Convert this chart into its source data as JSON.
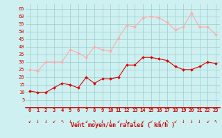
{
  "avg_values": [
    11,
    10,
    10,
    13,
    16,
    15,
    13,
    20,
    16,
    19,
    19,
    20,
    28,
    28,
    33,
    33,
    32,
    31,
    27,
    25,
    25,
    27,
    30,
    29
  ],
  "gust_values": [
    25,
    24,
    30,
    30,
    30,
    38,
    36,
    33,
    40,
    38,
    37,
    46,
    54,
    53,
    59,
    60,
    59,
    56,
    51,
    53,
    62,
    53,
    53,
    48
  ],
  "color_avg": "#dd0000",
  "color_gust": "#ffaaaa",
  "bg_color": "#cef0f0",
  "grid_color": "#99cccc",
  "xlabel": "Vent moyen/en rafales ( km/h )",
  "ylim": [
    0,
    68
  ],
  "yticks": [
    5,
    10,
    15,
    20,
    25,
    30,
    35,
    40,
    45,
    50,
    55,
    60,
    65
  ],
  "xlim": [
    -0.5,
    23.5
  ],
  "xticks": [
    0,
    1,
    2,
    3,
    4,
    5,
    6,
    7,
    8,
    9,
    10,
    11,
    12,
    13,
    14,
    15,
    16,
    17,
    18,
    19,
    20,
    21,
    22,
    23
  ],
  "arrow_chars": [
    "↙",
    "↓",
    "↓",
    "↙",
    "↖",
    "↓",
    "↙",
    "↙",
    "↖",
    "↓",
    "↓",
    "↙",
    "↓",
    "↓",
    "↙",
    "↙",
    "↙",
    "↖",
    "↙",
    "↓",
    "↓",
    "↓",
    "↙",
    "↖"
  ]
}
